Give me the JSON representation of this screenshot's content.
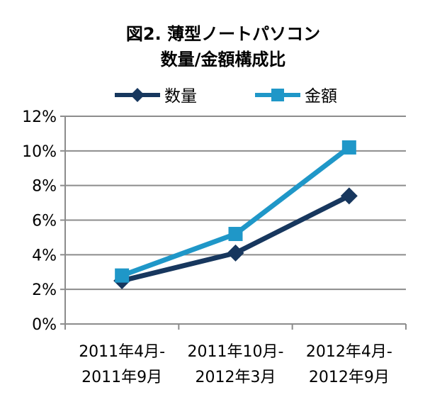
{
  "chart_data": {
    "type": "line",
    "title": [
      "図2. 薄型ノートパソコン",
      "数量/金額構成比"
    ],
    "xlabel": "",
    "ylabel": "",
    "categories": [
      [
        "2011年4月-",
        "2011年9月"
      ],
      [
        "2011年10月-",
        "2012年3月"
      ],
      [
        "2012年4月-",
        "2012年9月"
      ]
    ],
    "series": [
      {
        "name": "数量",
        "values": [
          2.5,
          4.1,
          7.4
        ],
        "color": "#17375E",
        "marker": "diamond"
      },
      {
        "name": "金額",
        "values": [
          2.8,
          5.2,
          10.2
        ],
        "color": "#1F97C8",
        "marker": "square"
      }
    ],
    "ylim": [
      0,
      12
    ],
    "yticks": [
      0,
      2,
      4,
      6,
      8,
      10,
      12
    ],
    "ytick_labels": [
      "0%",
      "2%",
      "4%",
      "6%",
      "8%",
      "10%",
      "12%"
    ],
    "grid": true,
    "legend_position": "top"
  }
}
